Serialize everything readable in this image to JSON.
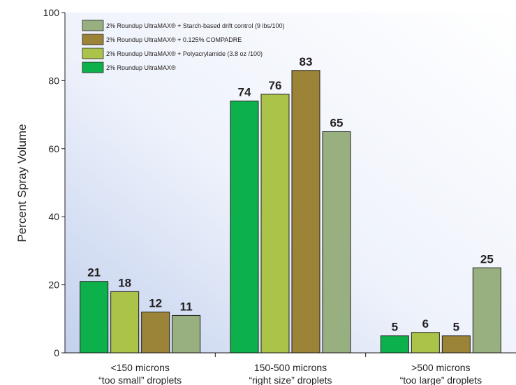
{
  "chart_data": {
    "type": "bar",
    "ylabel": "Percent Spray Volume",
    "ylim": [
      0,
      100
    ],
    "yticks": [
      "0",
      "20",
      "40",
      "60",
      "80",
      "100"
    ],
    "categories": [
      [
        "<150 microns",
        "“too small” droplets"
      ],
      [
        "150-500 microns",
        "“right size” droplets"
      ],
      [
        ">500 microns",
        "“too large” droplets"
      ]
    ],
    "series": [
      {
        "name": "2% Roundup UltraMAX®",
        "color": "#0db14b",
        "values": [
          21,
          74,
          5
        ]
      },
      {
        "name": "2% Roundup UltraMAX® + Polyacrylamide (3.8 oz /100)",
        "color": "#acc34a",
        "values": [
          18,
          76,
          6
        ]
      },
      {
        "name": "2% Roundup UltraMAX® + 0.125% COMPADRE",
        "color": "#9b8438",
        "values": [
          12,
          83,
          5
        ]
      },
      {
        "name": "2% Roundup UltraMAX® + Starch-based drift control (9 lbs/100)",
        "color": "#98b07f",
        "values": [
          11,
          65,
          25
        ]
      }
    ],
    "legend_order": [
      3,
      2,
      1,
      0
    ],
    "legend_position": "top-left",
    "grid": false
  }
}
